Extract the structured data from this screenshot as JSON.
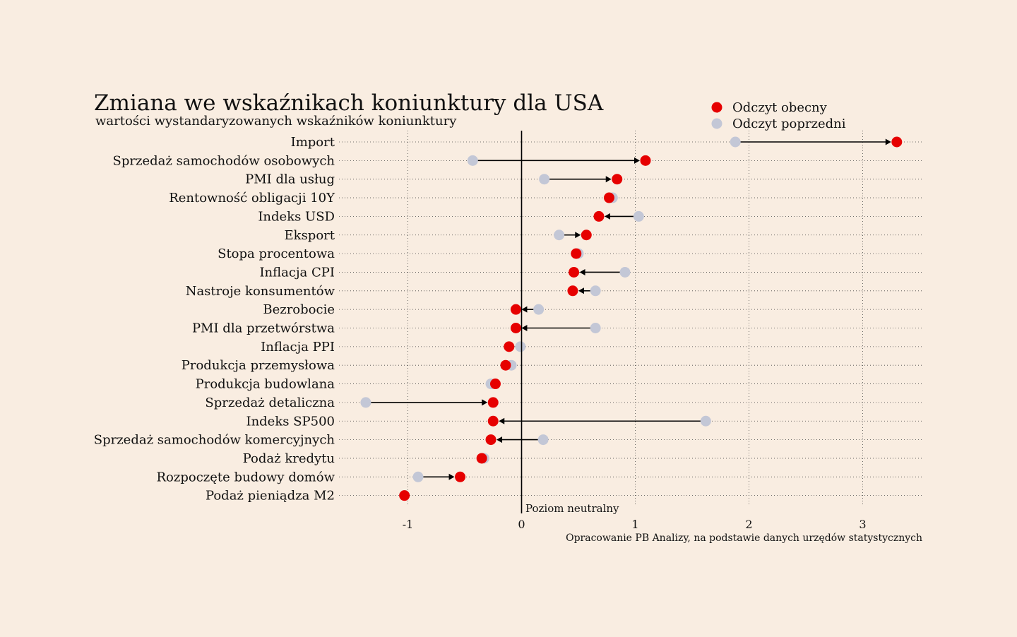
{
  "title": "Zmiana we wskaźnikach koniunktury dla USA",
  "subtitle": "wartości wystandaryzowanych wskaźników koniunktury",
  "legend": {
    "current_label": "Odczyt obecny",
    "previous_label": "Odczyt poprzedni"
  },
  "neutral_label": "Poziom neutralny",
  "source": "Opracowanie PB Analizy, na podstawie danych urzędów statystycznych",
  "colors": {
    "background": "#f9ede1",
    "current": "#e60000",
    "previous": "#c3c7d6",
    "arrow": "#000000"
  },
  "chart_data": {
    "type": "dumbbell",
    "title": "Zmiana we wskaźnikach koniunktury dla USA",
    "subtitle": "wartości wystandaryzowanych wskaźników koniunktury",
    "xlim": [
      -1.4,
      3.5
    ],
    "xticks": [
      -1,
      0,
      1,
      2,
      3
    ],
    "xtick_labels": [
      "-1",
      "0",
      "1",
      "2",
      "3"
    ],
    "grid": true,
    "legend_position": "top-right",
    "series": [
      {
        "name": "Odczyt obecny",
        "role": "current"
      },
      {
        "name": "Odczyt poprzedni",
        "role": "previous"
      }
    ],
    "categories": [
      "Import",
      "Sprzedaż samochodów osobowych",
      "PMI dla usług",
      "Rentowność obligacji 10Y",
      "Indeks USD",
      "Eksport",
      "Stopa procentowa",
      "Inflacja CPI",
      "Nastroje konsumentów",
      "Bezrobocie",
      "PMI dla przetwórstwa",
      "Inflacja PPI",
      "Produkcja przemysłowa",
      "Produkcja budowlana",
      "Sprzedaż detaliczna",
      "Indeks SP500",
      "Sprzedaż samochodów komercyjnych",
      "Podaż kredytu",
      "Rozpoczęte budowy domów",
      "Podaż pieniądza M2"
    ],
    "current": [
      3.3,
      1.09,
      0.84,
      0.77,
      0.68,
      0.57,
      0.48,
      0.46,
      0.45,
      -0.05,
      -0.05,
      -0.11,
      -0.14,
      -0.23,
      -0.25,
      -0.25,
      -0.27,
      -0.35,
      -0.54,
      -1.03
    ],
    "previous": [
      1.88,
      -0.43,
      0.2,
      0.8,
      1.03,
      0.33,
      0.5,
      0.91,
      0.65,
      0.15,
      0.65,
      -0.01,
      -0.09,
      -0.27,
      -1.37,
      1.62,
      0.19,
      -0.33,
      -0.91,
      -1.03
    ]
  }
}
